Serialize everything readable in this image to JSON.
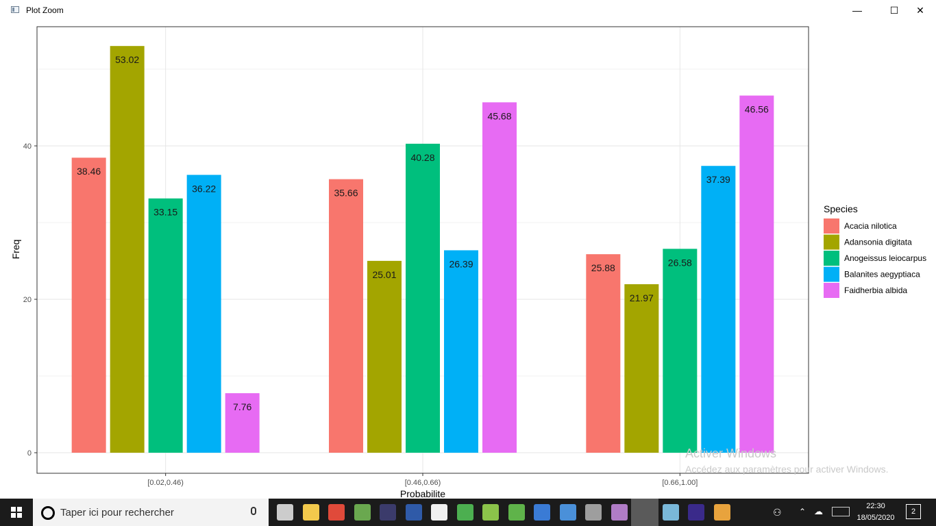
{
  "window": {
    "title": "Plot Zoom",
    "minimize_label": "—",
    "maximize_label": "☐",
    "close_label": "✕"
  },
  "chart_data": {
    "type": "bar",
    "categories": [
      "[0.02,0.46)",
      "[0.46,0.66)",
      "[0.66,1.00]"
    ],
    "series": [
      {
        "name": "Acacia nilotica",
        "color": "#F8766D",
        "values": [
          38.46,
          35.66,
          25.88
        ]
      },
      {
        "name": "Adansonia digitata",
        "color": "#A3A500",
        "values": [
          53.02,
          25.01,
          21.97
        ]
      },
      {
        "name": "Anogeissus leiocarpus",
        "color": "#00BF7D",
        "values": [
          33.15,
          40.28,
          26.58
        ]
      },
      {
        "name": "Balanites aegyptiaca",
        "color": "#00B0F6",
        "values": [
          36.22,
          26.39,
          37.39
        ]
      },
      {
        "name": "Faidherbia albida",
        "color": "#E76BF3",
        "values": [
          7.76,
          45.68,
          46.56
        ]
      }
    ],
    "value_labels": [
      [
        "38.46",
        "35.66",
        "25.88"
      ],
      [
        "53.02",
        "25.01",
        "21.97"
      ],
      [
        "33.15",
        "40.28",
        "26.58"
      ],
      [
        "36.22",
        "26.39",
        "37.39"
      ],
      [
        "7.76",
        "45.68",
        "46.56"
      ]
    ],
    "title": "",
    "xlabel": "Probabilite",
    "ylabel": "Freq",
    "ylim": [
      0,
      55
    ],
    "yticks": [
      0,
      20,
      40
    ],
    "grid": true,
    "legend_title": "Species",
    "legend_position": "right"
  },
  "watermark": {
    "line1": "Activer Windows",
    "line2": "Accédez aux paramètres pour activer Windows."
  },
  "taskbar": {
    "search_placeholder": "Taper ici pour rechercher",
    "time": "22:30",
    "date": "18/05/2020",
    "notification_count": "2",
    "icons": [
      "task-view-icon",
      "file-explorer-icon",
      "chrome-icon",
      "app-icon",
      "calculator-icon",
      "b-app-icon",
      "document-icon",
      "image-app-icon",
      "qgis-icon",
      "qgis-alt-icon",
      "app-window-icon",
      "search-app-icon",
      "globe-app-icon",
      "github-icon",
      "r-icon",
      "notepad-icon",
      "tex-icon",
      "paint-icon"
    ]
  }
}
